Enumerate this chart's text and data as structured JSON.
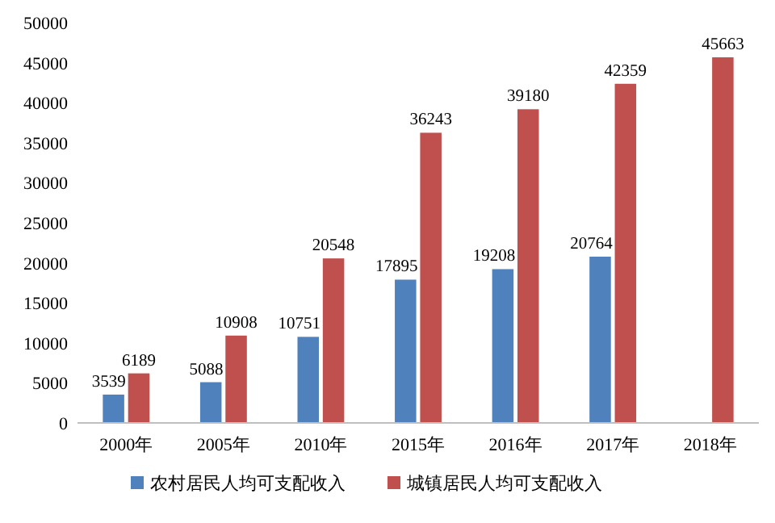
{
  "chart_data": {
    "type": "bar",
    "categories": [
      "2000年",
      "2005年",
      "2010年",
      "2015年",
      "2016年",
      "2017年",
      "2018年"
    ],
    "series": [
      {
        "name": "农村居民人均可支配收入",
        "color": "#4f81bd",
        "values": [
          3539,
          5088,
          10751,
          17895,
          19208,
          20764,
          null
        ]
      },
      {
        "name": "城镇居民人均可支配收入",
        "color": "#c0504d",
        "values": [
          6189,
          10908,
          20548,
          36243,
          39180,
          42359,
          45663
        ]
      }
    ],
    "ylim": [
      0,
      50000
    ],
    "yticks": [
      0,
      5000,
      10000,
      15000,
      20000,
      25000,
      30000,
      35000,
      40000,
      45000,
      50000
    ],
    "grid": false,
    "legend": "bottom",
    "data_labels": true
  }
}
